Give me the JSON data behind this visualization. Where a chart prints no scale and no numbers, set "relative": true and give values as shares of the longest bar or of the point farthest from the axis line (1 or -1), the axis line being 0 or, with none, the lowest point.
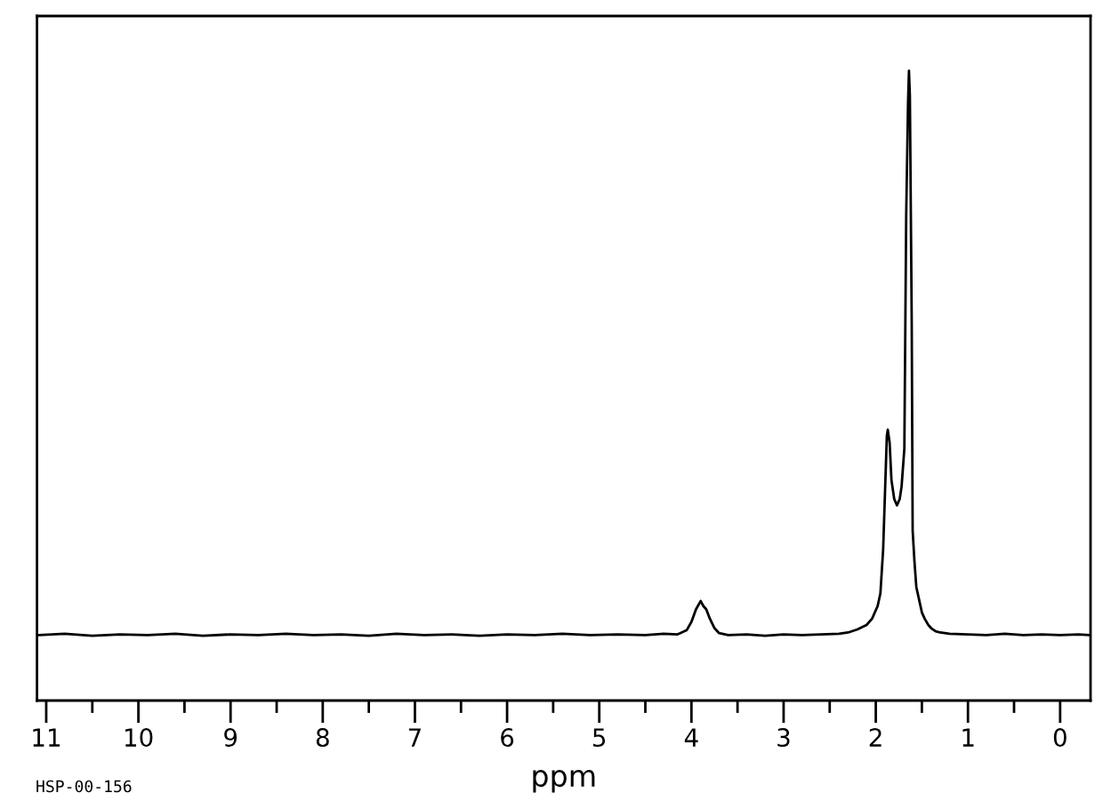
{
  "chart_data": {
    "type": "line",
    "relative": true,
    "xlabel": "ppm",
    "annotations": [
      "HSP-00-156"
    ],
    "xlim": [
      11.1,
      -0.33
    ],
    "xticks": [
      11,
      {
        "value": 10.5,
        "label": null
      },
      10,
      {
        "value": 9.5,
        "label": null
      },
      9,
      {
        "value": 8.5,
        "label": null
      },
      8,
      {
        "value": 7.5,
        "label": null
      },
      7,
      {
        "value": 6.5,
        "label": null
      },
      6,
      {
        "value": 5.5,
        "label": null
      },
      5,
      {
        "value": 4.5,
        "label": null
      },
      4,
      {
        "value": 3.5,
        "label": null
      },
      3,
      {
        "value": 2.5,
        "label": null
      },
      2,
      {
        "value": 1.5,
        "label": null
      },
      1,
      {
        "value": 0.5,
        "label": null
      },
      0
    ],
    "tick_labels": "x",
    "x": [
      11.08,
      10.8,
      10.5,
      10.2,
      9.9,
      9.6,
      9.3,
      9.0,
      8.7,
      8.4,
      8.1,
      7.8,
      7.5,
      7.2,
      6.9,
      6.6,
      6.3,
      6.0,
      5.7,
      5.4,
      5.1,
      4.8,
      4.5,
      4.3,
      4.15,
      4.05,
      4.0,
      3.95,
      3.9,
      3.87,
      3.84,
      3.8,
      3.75,
      3.7,
      3.6,
      3.4,
      3.2,
      3.0,
      2.8,
      2.6,
      2.4,
      2.3,
      2.2,
      2.1,
      2.04,
      1.98,
      1.95,
      1.92,
      1.9,
      1.88,
      1.87,
      1.85,
      1.83,
      1.8,
      1.77,
      1.74,
      1.72,
      1.69,
      1.67,
      1.65,
      1.64,
      1.63,
      1.61,
      1.6,
      1.58,
      1.56,
      1.53,
      1.5,
      1.47,
      1.43,
      1.4,
      1.35,
      1.3,
      1.2,
      1.0,
      0.8,
      0.6,
      0.4,
      0.2,
      0.0,
      -0.2,
      -0.32
    ],
    "series": [
      {
        "color": "#000000",
        "values": [
          0.104,
          0.106,
          0.103,
          0.105,
          0.104,
          0.106,
          0.103,
          0.105,
          0.104,
          0.106,
          0.104,
          0.105,
          0.103,
          0.106,
          0.104,
          0.105,
          0.103,
          0.105,
          0.104,
          0.106,
          0.104,
          0.105,
          0.104,
          0.106,
          0.105,
          0.112,
          0.125,
          0.145,
          0.158,
          0.15,
          0.145,
          0.13,
          0.115,
          0.107,
          0.104,
          0.105,
          0.103,
          0.105,
          0.104,
          0.105,
          0.106,
          0.108,
          0.113,
          0.12,
          0.13,
          0.15,
          0.17,
          0.24,
          0.33,
          0.42,
          0.43,
          0.41,
          0.35,
          0.32,
          0.31,
          0.32,
          0.34,
          0.4,
          0.77,
          0.95,
          1.0,
          0.96,
          0.6,
          0.27,
          0.22,
          0.18,
          0.16,
          0.14,
          0.13,
          0.12,
          0.115,
          0.11,
          0.108,
          0.106,
          0.105,
          0.104,
          0.106,
          0.104,
          0.105,
          0.104,
          0.105,
          0.104
        ]
      }
    ]
  }
}
